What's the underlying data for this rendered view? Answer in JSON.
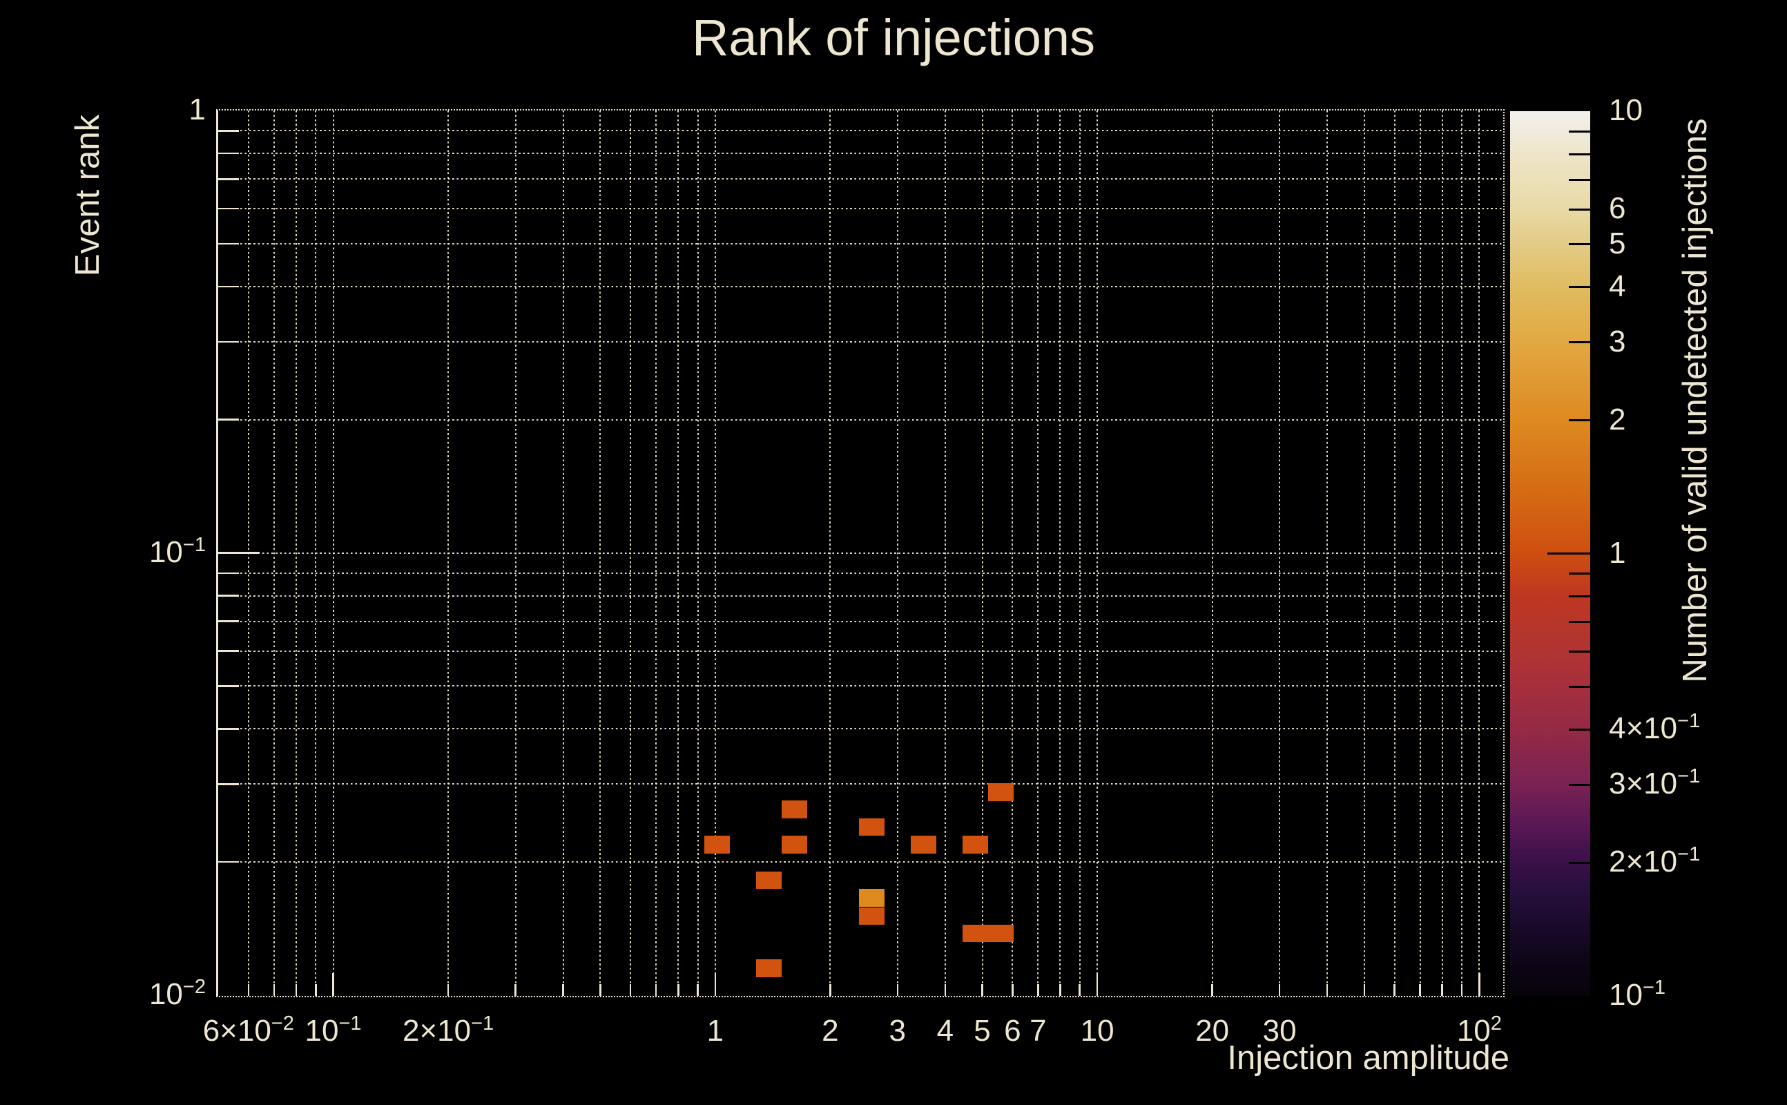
{
  "figure": {
    "title": "Rank of injections",
    "background_color": "#000000",
    "text_color": "#EDE6D0"
  },
  "chart_data": {
    "type": "heatmap",
    "title": "Rank of injections",
    "xlabel": "Injection amplitude",
    "ylabel": "Event rank",
    "xscale": "log",
    "yscale": "log",
    "xlim": [
      0.05,
      115.5
    ],
    "ylim": [
      0.01,
      1.0
    ],
    "grid": "dotted log grid, major and minor, both axes",
    "x_tick_labels": [
      {
        "v": 0.06,
        "t": "6×10^−2"
      },
      {
        "v": 0.1,
        "t": "10^−1"
      },
      {
        "v": 0.2,
        "t": "2×10^−1"
      },
      {
        "v": 1,
        "t": "1"
      },
      {
        "v": 2,
        "t": "2"
      },
      {
        "v": 3,
        "t": "3"
      },
      {
        "v": 4,
        "t": "4"
      },
      {
        "v": 5,
        "t": "5"
      },
      {
        "v": 6,
        "t": "6"
      },
      {
        "v": 7,
        "t": "7"
      },
      {
        "v": 10,
        "t": "10"
      },
      {
        "v": 20,
        "t": "20"
      },
      {
        "v": 30,
        "t": "30"
      },
      {
        "v": 100,
        "t": "10^2"
      }
    ],
    "y_tick_labels": [
      {
        "v": 1,
        "t": "1"
      },
      {
        "v": 0.1,
        "t": "10^−1"
      },
      {
        "v": 0.01,
        "t": "10^−2"
      }
    ],
    "x_bin_width_dex": 0.0676,
    "y_bin_width_dex": 0.0399,
    "cells": [
      {
        "x": 1.01,
        "y": 0.0219,
        "count": 1
      },
      {
        "x": 1.38,
        "y": 0.0182,
        "count": 1
      },
      {
        "x": 1.38,
        "y": 0.0115,
        "count": 1
      },
      {
        "x": 1.61,
        "y": 0.0263,
        "count": 1
      },
      {
        "x": 1.61,
        "y": 0.0219,
        "count": 1
      },
      {
        "x": 2.57,
        "y": 0.024,
        "count": 1
      },
      {
        "x": 2.57,
        "y": 0.0166,
        "count": 2
      },
      {
        "x": 2.57,
        "y": 0.0151,
        "count": 1
      },
      {
        "x": 3.51,
        "y": 0.0219,
        "count": 1
      },
      {
        "x": 4.79,
        "y": 0.0219,
        "count": 1
      },
      {
        "x": 4.79,
        "y": 0.0138,
        "count": 1
      },
      {
        "x": 5.6,
        "y": 0.0138,
        "count": 1
      },
      {
        "x": 5.6,
        "y": 0.0288,
        "count": 1
      }
    ],
    "colorbar": {
      "label": "Number of valid undetected injections",
      "scale": "log",
      "lim": [
        0.1,
        10
      ],
      "tick_labels": [
        {
          "v": 10,
          "t": "10"
        },
        {
          "v": 6,
          "t": "6"
        },
        {
          "v": 5,
          "t": "5"
        },
        {
          "v": 4,
          "t": "4"
        },
        {
          "v": 3,
          "t": "3"
        },
        {
          "v": 2,
          "t": "2"
        },
        {
          "v": 1,
          "t": "1"
        },
        {
          "v": 0.4,
          "t": "4×10^−1"
        },
        {
          "v": 0.3,
          "t": "3×10^−1"
        },
        {
          "v": 0.2,
          "t": "2×10^−1"
        },
        {
          "v": 0.1,
          "t": "10^−1"
        }
      ],
      "count_colors": {
        "1": "#D2520F",
        "2": "#DE8A1F"
      },
      "gradient_stops": [
        [
          0.0,
          "#070309"
        ],
        [
          0.04,
          "#0E0517"
        ],
        [
          0.08,
          "#1A0A2B"
        ],
        [
          0.12,
          "#27103D"
        ],
        [
          0.152,
          "#3A1048"
        ],
        [
          0.19,
          "#571755"
        ],
        [
          0.239,
          "#7A2254"
        ],
        [
          0.301,
          "#942A45"
        ],
        [
          0.35,
          "#A52F3C"
        ],
        [
          0.389,
          "#B03433"
        ],
        [
          0.452,
          "#BE3722"
        ],
        [
          0.502,
          "#CF4F10"
        ],
        [
          0.58,
          "#D66F15"
        ],
        [
          0.651,
          "#DD8A20"
        ],
        [
          0.739,
          "#E2A843"
        ],
        [
          0.801,
          "#E0BC60"
        ],
        [
          0.85,
          "#E3CB86"
        ],
        [
          0.889,
          "#E8D9A6"
        ],
        [
          0.95,
          "#EEE5C8"
        ],
        [
          1.0,
          "#F2F0EE"
        ]
      ]
    }
  }
}
